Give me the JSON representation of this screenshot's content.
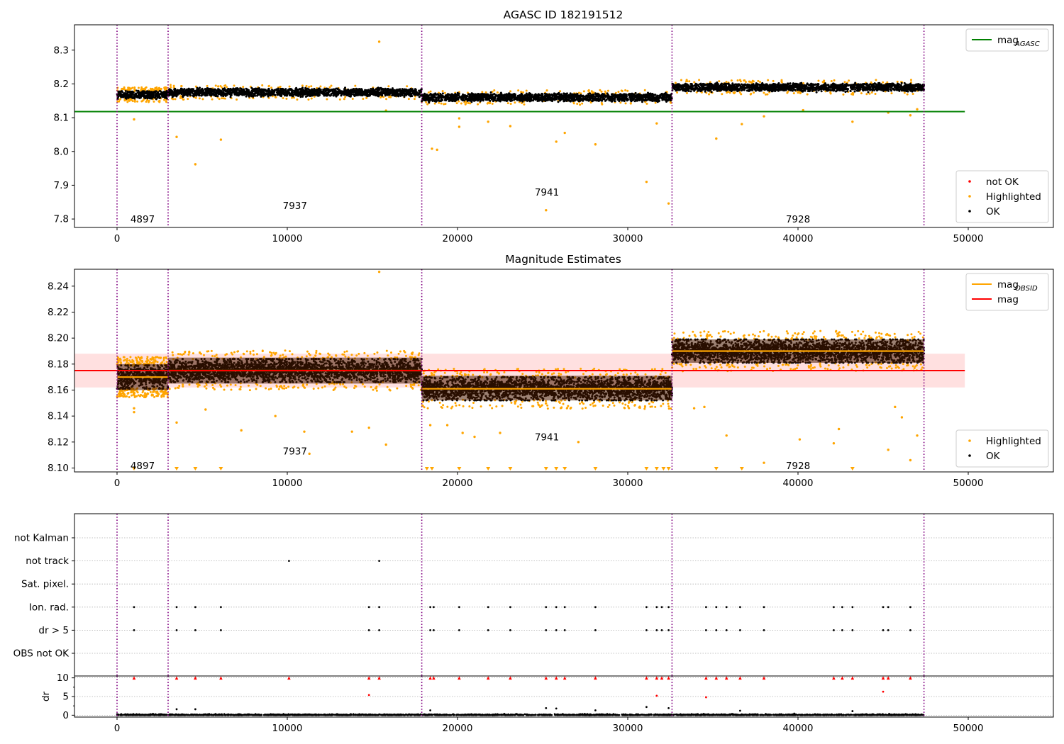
{
  "chart_data": [
    {
      "id": "agasc",
      "type": "scatter",
      "title": "AGASC ID 182191512",
      "xlim": [
        -2500,
        55000
      ],
      "ylim": [
        7.775,
        8.375
      ],
      "xticks": [
        0,
        10000,
        20000,
        30000,
        40000,
        50000
      ],
      "yticks": [
        7.8,
        7.9,
        8.0,
        8.1,
        8.2,
        8.3
      ],
      "ytick_labels": [
        "7.8",
        "7.9",
        "8.0",
        "8.1",
        "8.2",
        "8.3"
      ],
      "obsid_boundaries": [
        0,
        3000,
        17900,
        32600,
        47400
      ],
      "observations": [
        {
          "obsid": "4897",
          "x": [
            0,
            3000
          ],
          "label_pos": [
            1500,
            7.8
          ],
          "center": 8.168,
          "spread": 0.011
        },
        {
          "obsid": "7937",
          "x": [
            3000,
            17900
          ],
          "label_pos": [
            10450,
            7.84
          ],
          "center": 8.175,
          "spread": 0.011
        },
        {
          "obsid": "7941",
          "x": [
            17900,
            32600
          ],
          "label_pos": [
            25250,
            7.88
          ],
          "center": 8.16,
          "spread": 0.011
        },
        {
          "obsid": "7928",
          "x": [
            32600,
            47400
          ],
          "label_pos": [
            40000,
            7.8
          ],
          "center": 8.19,
          "spread": 0.011
        }
      ],
      "reference_line": {
        "name": "mag_AGASC",
        "y": 8.118,
        "x": [
          -2500,
          49800
        ],
        "color": "#008000"
      },
      "outliers": [
        [
          1000,
          8.095
        ],
        [
          3500,
          8.043
        ],
        [
          4600,
          7.962
        ],
        [
          6100,
          8.035
        ],
        [
          15400,
          8.325
        ],
        [
          15800,
          8.121
        ],
        [
          18500,
          8.008
        ],
        [
          18800,
          8.005
        ],
        [
          20100,
          8.098
        ],
        [
          20100,
          8.073
        ],
        [
          21800,
          8.088
        ],
        [
          23100,
          8.075
        ],
        [
          25800,
          8.029
        ],
        [
          26300,
          8.055
        ],
        [
          28100,
          8.021
        ],
        [
          25200,
          7.826
        ],
        [
          31100,
          7.91
        ],
        [
          31700,
          8.083
        ],
        [
          32400,
          7.846
        ],
        [
          35200,
          8.038
        ],
        [
          36700,
          8.081
        ],
        [
          38000,
          8.104
        ],
        [
          40300,
          8.122
        ],
        [
          43200,
          8.088
        ],
        [
          45300,
          8.115
        ],
        [
          46600,
          8.107
        ],
        [
          47000,
          8.125
        ]
      ],
      "legends": [
        {
          "position": "upper-right",
          "entries": [
            {
              "label": "mag",
              "sub": "AGASC",
              "kind": "line",
              "color": "#008000"
            }
          ]
        },
        {
          "position": "lower-right",
          "entries": [
            {
              "label": "not OK",
              "kind": "dot",
              "color": "#ff0000"
            },
            {
              "label": "Highlighted",
              "kind": "dot",
              "color": "#ffa500"
            },
            {
              "label": "OK",
              "kind": "dot",
              "color": "#000000"
            }
          ]
        }
      ]
    },
    {
      "id": "estimates",
      "type": "scatter",
      "title": "Magnitude Estimates",
      "xlim": [
        -2500,
        55000
      ],
      "ylim": [
        8.097,
        8.253
      ],
      "xticks": [
        0,
        10000,
        20000,
        30000,
        40000,
        50000
      ],
      "yticks": [
        8.1,
        8.12,
        8.14,
        8.16,
        8.18,
        8.2,
        8.22,
        8.24
      ],
      "ytick_labels": [
        "8.10",
        "8.12",
        "8.14",
        "8.16",
        "8.18",
        "8.20",
        "8.22",
        "8.24"
      ],
      "obsid_boundaries": [
        0,
        3000,
        17900,
        32600,
        47400
      ],
      "observations": [
        {
          "obsid": "4897",
          "x": [
            0,
            3000
          ],
          "label_pos": [
            1500,
            8.102
          ],
          "mag_obsid": 8.17,
          "band": [
            8.16,
            8.18
          ],
          "center": 8.17,
          "spread": 0.0085
        },
        {
          "obsid": "7937",
          "x": [
            3000,
            17900
          ],
          "label_pos": [
            10450,
            8.113
          ],
          "mag_obsid": 8.175,
          "band": [
            8.165,
            8.185
          ],
          "center": 8.175,
          "spread": 0.0085
        },
        {
          "obsid": "7941",
          "x": [
            17900,
            32600
          ],
          "label_pos": [
            25250,
            8.124
          ],
          "mag_obsid": 8.161,
          "band": [
            8.152,
            8.171
          ],
          "center": 8.161,
          "spread": 0.0085
        },
        {
          "obsid": "7928",
          "x": [
            32600,
            47400
          ],
          "label_pos": [
            40000,
            8.102
          ],
          "mag_obsid": 8.19,
          "band": [
            8.181,
            8.199
          ],
          "center": 8.19,
          "spread": 0.0085
        }
      ],
      "mag_line": {
        "name": "mag",
        "y": 8.175,
        "x": [
          -2500,
          49800
        ],
        "color": "#ff0000"
      },
      "mag_band": {
        "y": [
          8.162,
          8.188
        ],
        "x": [
          -2500,
          49800
        ],
        "color": "#ff0000"
      },
      "outliers": [
        [
          1000,
          8.143
        ],
        [
          1000,
          8.146
        ],
        [
          3500,
          8.135
        ],
        [
          5200,
          8.145
        ],
        [
          7300,
          8.129
        ],
        [
          9300,
          8.14
        ],
        [
          11000,
          8.128
        ],
        [
          11300,
          8.111
        ],
        [
          13800,
          8.128
        ],
        [
          14800,
          8.131
        ],
        [
          15400,
          8.251
        ],
        [
          15800,
          8.118
        ],
        [
          18400,
          8.133
        ],
        [
          19400,
          8.133
        ],
        [
          20300,
          8.127
        ],
        [
          21000,
          8.124
        ],
        [
          22500,
          8.127
        ],
        [
          27100,
          8.12
        ],
        [
          33900,
          8.146
        ],
        [
          34500,
          8.147
        ],
        [
          35800,
          8.125
        ],
        [
          38000,
          8.104
        ],
        [
          40100,
          8.122
        ],
        [
          42100,
          8.119
        ],
        [
          42400,
          8.13
        ],
        [
          45300,
          8.114
        ],
        [
          45700,
          8.147
        ],
        [
          46100,
          8.139
        ],
        [
          46600,
          8.106
        ],
        [
          47000,
          8.125
        ]
      ],
      "floor_markers": [
        1000,
        3500,
        4600,
        6100,
        18200,
        18500,
        20100,
        21800,
        23100,
        25200,
        25800,
        26300,
        28100,
        31100,
        31700,
        32100,
        32400,
        35200,
        36700,
        43200
      ],
      "legends": [
        {
          "position": "upper-right",
          "entries": [
            {
              "label": "mag",
              "sub": "OBSID",
              "kind": "line",
              "color": "#ffa500"
            },
            {
              "label": "mag",
              "sub": "",
              "kind": "line",
              "color": "#ff0000"
            }
          ]
        },
        {
          "position": "lower-right",
          "entries": [
            {
              "label": "Highlighted",
              "kind": "dot",
              "color": "#ffa500"
            },
            {
              "label": "OK",
              "kind": "dot",
              "color": "#000000"
            }
          ]
        }
      ]
    },
    {
      "id": "flags",
      "type": "scatter",
      "categories": [
        "not Kalman",
        "not track",
        "Sat. pixel.",
        "Ion. rad.",
        "dr > 5",
        "OBS not OK"
      ],
      "xlim": [
        -2500,
        55000
      ],
      "obsid_boundaries": [
        0,
        3000,
        17900,
        32600,
        47400
      ],
      "flag_events": {
        "not track": [
          10100,
          15400
        ],
        "Ion. rad.": [
          1000,
          3500,
          4600,
          6100,
          14800,
          15400,
          18400,
          18600,
          20100,
          21800,
          23100,
          25200,
          25800,
          26300,
          28100,
          31100,
          31700,
          32000,
          32400,
          34600,
          35200,
          35800,
          36600,
          38000,
          42100,
          42600,
          43200,
          45000,
          45300,
          46600
        ],
        "dr > 5": [
          1000,
          3500,
          4600,
          6100,
          14800,
          15400,
          18400,
          18600,
          20100,
          21800,
          23100,
          25200,
          25800,
          26300,
          28100,
          31100,
          31700,
          32000,
          32400,
          34600,
          35200,
          35800,
          36600,
          38000,
          42100,
          42600,
          43200,
          45000,
          45300,
          46600
        ]
      }
    },
    {
      "id": "dr",
      "type": "scatter",
      "ylabel": "dr",
      "xlim": [
        -2500,
        55000
      ],
      "ylim": [
        -0.5,
        10.5
      ],
      "yticks": [
        0,
        5,
        10
      ],
      "ytick_labels": [
        "0",
        "5",
        "10"
      ],
      "xticks": [
        0,
        10000,
        20000,
        30000,
        40000,
        50000
      ],
      "obsid_boundaries": [
        0,
        3000,
        17900,
        32600,
        47400
      ],
      "capped_points": [
        1000,
        3500,
        4600,
        6100,
        10100,
        14800,
        15400,
        18400,
        18600,
        20100,
        21800,
        23100,
        25200,
        25800,
        26300,
        28100,
        31100,
        31700,
        32000,
        32400,
        34600,
        35200,
        35800,
        36600,
        38000,
        42100,
        42600,
        43200,
        45000,
        45300,
        46600
      ],
      "red_points": [
        [
          14800,
          5.4
        ],
        [
          31700,
          5.2
        ],
        [
          34600,
          4.8
        ],
        [
          45000,
          6.3
        ]
      ],
      "black_points": [
        [
          3500,
          1.6
        ],
        [
          4600,
          1.6
        ],
        [
          25200,
          1.9
        ],
        [
          25800,
          1.8
        ],
        [
          31100,
          2.2
        ],
        [
          32400,
          1.9
        ],
        [
          28100,
          1.3
        ],
        [
          18400,
          1.3
        ],
        [
          36600,
          1.2
        ],
        [
          43200,
          1.1
        ]
      ]
    }
  ]
}
